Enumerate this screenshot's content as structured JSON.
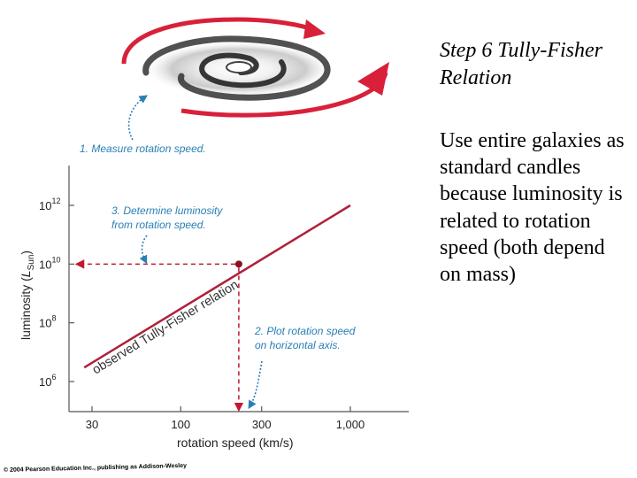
{
  "slide": {
    "title": "Step 6 Tully-Fisher Relation",
    "body": "Use entire galaxies as standard candles because luminosity is related to rotation speed (both depend on mass)"
  },
  "figure": {
    "step1": "1. Measure rotation speed.",
    "step3_line1": "3. Determine luminosity",
    "step3_line2": "from rotation speed.",
    "step2_line1": "2. Plot rotation speed",
    "step2_line2": "on horizontal axis.",
    "relation_label": "observed Tully-Fisher relation",
    "credit": "© 2004 Pearson Education Inc., publishing as Addison-Wesley",
    "colors": {
      "relation": "#b0203a",
      "guide": "#c01830",
      "annotation": "#2a7fb5",
      "axis": "#555555"
    }
  },
  "chart_data": {
    "type": "line",
    "xlabel": "rotation speed (km/s)",
    "ylabel_prefix": "luminosity (",
    "ylabel_L": "L",
    "ylabel_sub": "Sun",
    "ylabel_suffix": ")",
    "x_scale": "log",
    "y_scale": "log",
    "xlim": [
      20,
      2000
    ],
    "ylim": [
      100000,
      10000000000000
    ],
    "x_ticks": [
      {
        "value": 30,
        "label": "30"
      },
      {
        "value": 100,
        "label": "100"
      },
      {
        "value": 300,
        "label": "300"
      },
      {
        "value": 1000,
        "label": "1,000"
      }
    ],
    "y_ticks": [
      {
        "value": 1000000,
        "base": "10",
        "exp": "6"
      },
      {
        "value": 100000000,
        "base": "10",
        "exp": "8"
      },
      {
        "value": 10000000000,
        "base": "10",
        "exp": "10"
      },
      {
        "value": 1000000000000,
        "base": "10",
        "exp": "12"
      }
    ],
    "series": [
      {
        "name": "observed Tully-Fisher relation",
        "x": [
          27,
          1000
        ],
        "y": 3000000,
        "y_end": 1000000000000
      }
    ],
    "relation_points": [
      {
        "x": 27,
        "y": 3000000
      },
      {
        "x": 1000,
        "y": 1000000000000
      }
    ],
    "example_point": {
      "x": 220,
      "y": 10000000000
    }
  }
}
